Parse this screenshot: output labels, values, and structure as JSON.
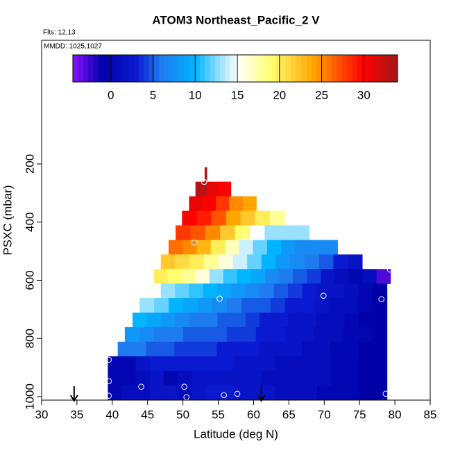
{
  "chart_data": {
    "type": "heatmap",
    "title": "ATOM3 Northeast_Pacific_2 V",
    "flights": "Flts: 12,13",
    "dates": "MMDD: 1025,1027",
    "x_label": "Latitude (deg N)",
    "y_label": "PSXC (mbar)",
    "xlim": [
      30,
      85
    ],
    "xticks": [
      30,
      35,
      40,
      45,
      50,
      55,
      60,
      65,
      70,
      75,
      80,
      85
    ],
    "ylim": [
      1012,
      -225
    ],
    "yticks": [
      200,
      400,
      600,
      800,
      1000
    ],
    "clim": [
      -4.5,
      34
    ],
    "cticks": [
      0,
      5,
      10,
      15,
      20,
      25,
      30
    ],
    "colorscale": [
      [
        -4.5,
        "#8a10ff"
      ],
      [
        -1,
        "#0000a8"
      ],
      [
        3,
        "#0a1ad0"
      ],
      [
        6,
        "#1e7cf0"
      ],
      [
        10,
        "#00b4ff"
      ],
      [
        15,
        "#ffffff"
      ],
      [
        19,
        "#ffff70"
      ],
      [
        24,
        "#ffa500"
      ],
      [
        30,
        "#ff0000"
      ],
      [
        34,
        "#a01818"
      ]
    ],
    "rows": [
      {
        "pressure": [
          212,
          262
        ],
        "latitude": [
          53.1,
          53.4
        ],
        "values": [
          33
        ]
      },
      {
        "pressure": [
          262,
          312
        ],
        "latitude": [
          51.8,
          56.8
        ],
        "values": [
          33,
          31,
          30
        ]
      },
      {
        "pressure": [
          312,
          362
        ],
        "latitude": [
          50.9,
          60.4
        ],
        "values": [
          31,
          30,
          28,
          25,
          24
        ]
      },
      {
        "pressure": [
          362,
          412
        ],
        "latitude": [
          49.9,
          64.4
        ],
        "values": [
          30,
          29,
          27,
          24,
          22,
          20,
          18
        ]
      },
      {
        "pressure": [
          412,
          462
        ],
        "latitude": [
          49,
          67.9
        ],
        "values": [
          28,
          27,
          25,
          22,
          19,
          15,
          13,
          13,
          13
        ]
      },
      {
        "pressure": [
          462,
          512
        ],
        "latitude": [
          48,
          71.9
        ],
        "values": [
          26,
          25,
          23,
          20,
          17,
          14,
          12,
          10,
          8,
          7,
          7,
          7
        ]
      },
      {
        "pressure": [
          512,
          562
        ],
        "latitude": [
          46.9,
          75.4
        ],
        "values": [
          22,
          21,
          20,
          18,
          16,
          14,
          12,
          10,
          8,
          7,
          6,
          5,
          3,
          2
        ]
      },
      {
        "pressure": [
          562,
          612
        ],
        "latitude": [
          45.9,
          79.4
        ],
        "values": [
          20,
          19,
          18,
          16,
          13,
          11,
          10,
          9,
          7,
          6,
          5,
          4,
          2,
          1,
          0,
          1,
          -3
        ]
      },
      {
        "pressure": [
          612,
          662
        ],
        "latitude": [
          44.9,
          78.9
        ],
        "values": [
          15,
          13,
          12,
          11,
          10,
          9,
          8,
          7,
          6,
          5,
          4,
          3,
          2,
          2,
          1,
          0,
          -1
        ]
      },
      {
        "pressure": [
          662,
          712
        ],
        "latitude": [
          43.9,
          78.9
        ],
        "values": [
          13,
          12,
          10,
          9,
          8,
          7,
          6,
          5,
          5,
          4,
          3,
          3,
          2,
          1,
          1,
          0,
          -1
        ]
      },
      {
        "pressure": [
          712,
          762
        ],
        "latitude": [
          42.9,
          78.9
        ],
        "values": [
          10,
          9,
          8,
          7,
          6,
          6,
          5,
          5,
          4,
          3,
          3,
          2,
          2,
          1,
          1,
          0,
          -1,
          -1
        ]
      },
      {
        "pressure": [
          762,
          812
        ],
        "latitude": [
          41.8,
          78.9
        ],
        "values": [
          8,
          7,
          6,
          6,
          5,
          5,
          5,
          4,
          4,
          3,
          3,
          2,
          2,
          1,
          1,
          0,
          0,
          -1
        ]
      },
      {
        "pressure": [
          812,
          862
        ],
        "latitude": [
          40.8,
          78.9
        ],
        "values": [
          6,
          6,
          5,
          5,
          4,
          4,
          4,
          3,
          3,
          3,
          2,
          2,
          2,
          1,
          1,
          0,
          0,
          -1,
          -1
        ]
      },
      {
        "pressure": [
          862,
          912
        ],
        "latitude": [
          39.4,
          78.9
        ],
        "values": [
          0,
          0,
          2,
          3,
          3,
          3,
          3,
          3,
          3,
          2,
          2,
          2,
          1,
          1,
          1,
          1,
          0,
          0,
          -1,
          -1
        ]
      },
      {
        "pressure": [
          912,
          962
        ],
        "latitude": [
          39.4,
          78.9
        ],
        "values": [
          0,
          0,
          1,
          2,
          0,
          1,
          2,
          2,
          2,
          2,
          2,
          1,
          1,
          1,
          1,
          1,
          0,
          0,
          -1,
          -1
        ]
      },
      {
        "pressure": [
          962,
          1012
        ],
        "latitude": [
          39.4,
          78.9
        ],
        "values": [
          0,
          1,
          1,
          2,
          2,
          1,
          2,
          3,
          3,
          2,
          2,
          2,
          1,
          1,
          1,
          0,
          0,
          0,
          -1,
          -1
        ]
      }
    ],
    "points": {
      "latitude": [
        53.0,
        51.6,
        58.7,
        55.2,
        69.9,
        78.1,
        79.3,
        39.5,
        39.5,
        44.1,
        50.2,
        50.5,
        55.8,
        57.7,
        78.7,
        39.5
      ],
      "pressure": [
        262,
        470,
        451,
        663,
        653,
        665,
        563,
        873,
        947,
        966,
        966,
        1002,
        995,
        990,
        990,
        997
      ]
    },
    "arrows": {
      "latitude": [
        34.6,
        61.1
      ]
    }
  }
}
